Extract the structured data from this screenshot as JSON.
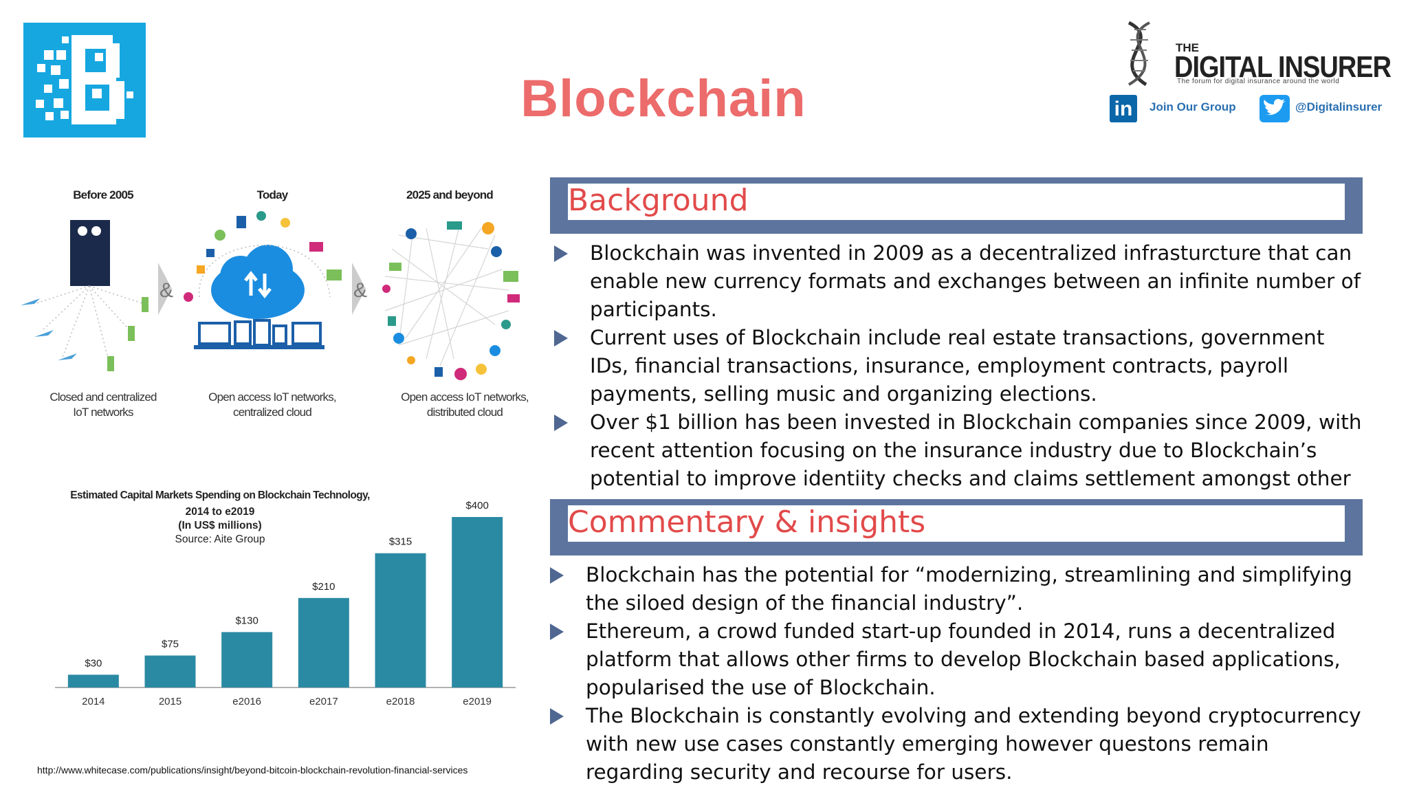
{
  "title": "Blockchain",
  "logo": {
    "brand_color": "#16a7e0",
    "icon": "blockchain-b-logo"
  },
  "partner": {
    "name_small": "THE",
    "name": "DIGITAL INSURER",
    "tagline": "The forum for digital insurance around the world",
    "linkedin_label": "Join Our Group",
    "twitter_label": "@Digitalinsurer"
  },
  "background": {
    "heading": "Background",
    "items": [
      "Blockchain was invented in 2009 as a decentralized infrasturcture that can enable new currency formats and exchanges between an infinite number of participants.",
      "Current uses of Blockchain include real estate transactions, government IDs, financial transactions, insurance, employment contracts, payroll payments, selling music and organizing elections.",
      "Over $1 billion has been invested in Blockchain companies since 2009, with recent attention focusing on the insurance industry due to Blockchain’s potential to improve identiity checks and claims settlement amongst other use cases."
    ]
  },
  "commentary": {
    "heading": "Commentary & insights",
    "items": [
      "Blockchain has the potential for “modernizing, streamlining and simplifying the siloed design of the financial industry”.",
      "Ethereum, a crowd funded start-up founded in 2014, runs a decentralized platform that allows other firms to develop Blockchain based applications, popularised the use of Blockchain.",
      "The Blockchain is constantly evolving and extending beyond cryptocurrency with new use cases constantly emerging however questons remain regarding security and recourse for users."
    ]
  },
  "iot": {
    "panels": [
      {
        "heading": "Before 2005",
        "caption_1": "Closed and centralized",
        "caption_2": "IoT networks"
      },
      {
        "heading": "Today",
        "caption_1": "Open access IoT networks,",
        "caption_2": "centralized cloud"
      },
      {
        "heading": "2025 and beyond",
        "caption_1": "Open access IoT networks,",
        "caption_2": "distributed cloud"
      }
    ],
    "connector": "&"
  },
  "chart_data": {
    "type": "bar",
    "title": "Estimated Capital Markets Spending on Blockchain Technology,",
    "subtitle_1": "2014 to e2019",
    "subtitle_2": "(In US$ millions)",
    "source": "Source: Aite Group",
    "categories": [
      "2014",
      "2015",
      "e2016",
      "e2017",
      "e2018",
      "e2019"
    ],
    "values": [
      30,
      75,
      130,
      210,
      315,
      400
    ],
    "labels": [
      "$30",
      "$75",
      "$130",
      "$210",
      "$315",
      "$400"
    ],
    "ylim": [
      0,
      400
    ],
    "bar_color": "#2b8aa3",
    "grid": false
  },
  "source_url": "http://www.whitecase.com/publications/insight/beyond-bitcoin-blockchain-revolution-financial-services"
}
